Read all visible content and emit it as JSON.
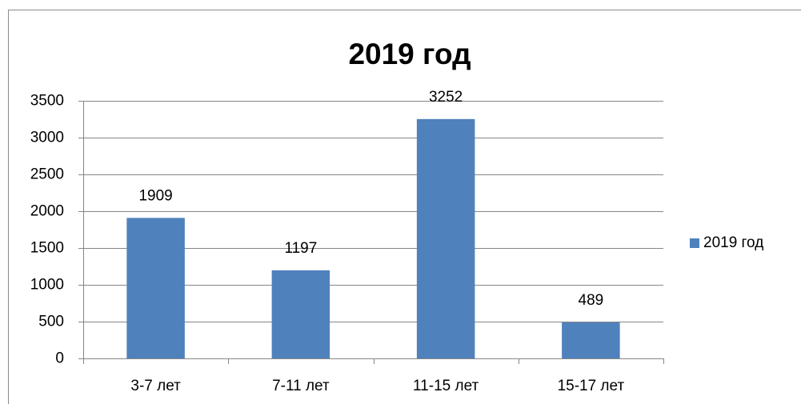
{
  "chart_data": {
    "type": "bar",
    "title": "2019 год",
    "categories": [
      "3-7 лет",
      "7-11 лет",
      "11-15 лет",
      "15-17 лет"
    ],
    "series": [
      {
        "name": "2019 год",
        "color": "#4f81bd",
        "values": [
          1909,
          1197,
          3252,
          489
        ]
      }
    ],
    "ylim": [
      0,
      3500
    ],
    "yticks": [
      0,
      500,
      1000,
      1500,
      2000,
      2500,
      3000,
      3500
    ],
    "grid": true,
    "legend": "right"
  }
}
